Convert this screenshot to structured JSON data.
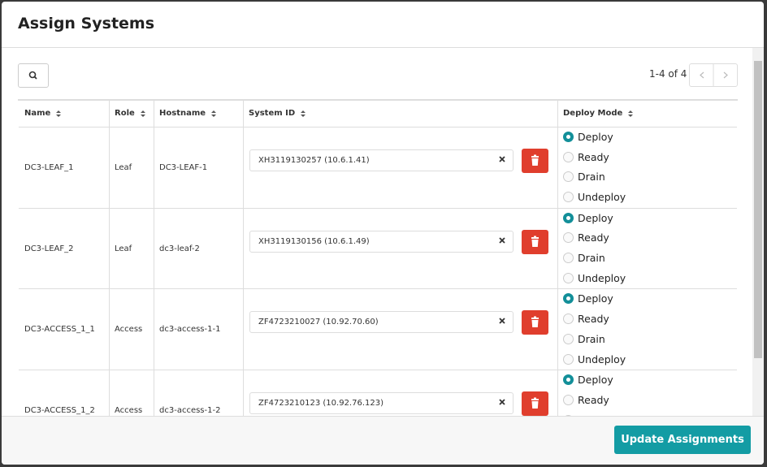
{
  "header": {
    "title": "Assign Systems"
  },
  "pagination": {
    "label": "1-4 of 4"
  },
  "table": {
    "columns": [
      "Name",
      "Role",
      "Hostname",
      "System ID",
      "Deploy Mode"
    ],
    "deploy_modes": [
      "Deploy",
      "Ready",
      "Drain",
      "Undeploy"
    ],
    "rows": [
      {
        "name": "DC3-LEAF_1",
        "role": "Leaf",
        "hostname": "DC3-LEAF-1",
        "system_id": "XH3119130257 (10.6.1.41)",
        "selected_mode": "Deploy"
      },
      {
        "name": "DC3-LEAF_2",
        "role": "Leaf",
        "hostname": "dc3-leaf-2",
        "system_id": "XH3119130156 (10.6.1.49)",
        "selected_mode": "Deploy"
      },
      {
        "name": "DC3-ACCESS_1_1",
        "role": "Access",
        "hostname": "dc3-access-1-1",
        "system_id": "ZF4723210027 (10.92.70.60)",
        "selected_mode": "Deploy"
      },
      {
        "name": "DC3-ACCESS_1_2",
        "role": "Access",
        "hostname": "dc3-access-1-2",
        "system_id": "ZF4723210123 (10.92.76.123)",
        "selected_mode": "Deploy"
      }
    ]
  },
  "footer": {
    "button": "Update Assignments"
  }
}
